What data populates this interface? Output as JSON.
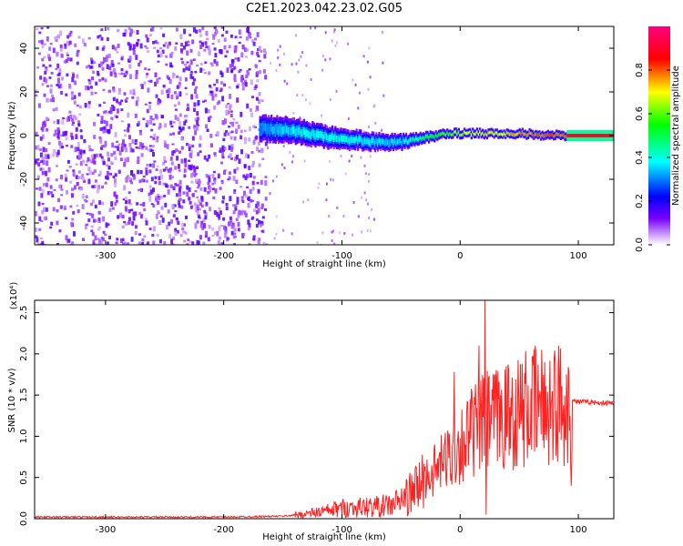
{
  "title": "C2E1.2023.042.23.02.G05",
  "chart_data": [
    {
      "type": "heatmap",
      "title": "C2E1.2023.042.23.02.G05",
      "xlabel": "Height of straight line (km)",
      "ylabel": "Frequency (Hz)",
      "xlim": [
        -360,
        130
      ],
      "ylim": [
        -50,
        50
      ],
      "xticks": [
        -300,
        -200,
        -100,
        0,
        100
      ],
      "yticks": [
        -40,
        -20,
        0,
        20,
        40
      ],
      "colorbar": {
        "label": "Normalized spectral amplitude",
        "range": [
          0.0,
          1.0
        ],
        "ticks": [
          "0.0",
          "0.2",
          "0.4",
          "0.6",
          "0.8"
        ],
        "colors": [
          "#ffffff",
          "#7a00ff",
          "#0000ff",
          "#00ffff",
          "#00ff00",
          "#ffff00",
          "#ff0000",
          "#ff0080"
        ]
      },
      "signal_track": {
        "description_free": true,
        "x": [
          -170,
          -150,
          -130,
          -110,
          -90,
          -70,
          -50,
          -30,
          -10,
          10,
          30,
          50,
          70,
          90
        ],
        "center_freq": [
          3,
          3,
          1,
          -1,
          -2,
          -3,
          -3,
          -1,
          1,
          1,
          1,
          1,
          0,
          0
        ],
        "width_hz": [
          12,
          12,
          11,
          10,
          9,
          8,
          7,
          5,
          4,
          4,
          4,
          4,
          4,
          4
        ],
        "peak_amplitude": [
          0.3,
          0.35,
          0.4,
          0.4,
          0.4,
          0.35,
          0.35,
          0.5,
          0.6,
          0.7,
          0.7,
          0.75,
          0.8,
          0.8
        ]
      },
      "noise_region_x": [
        -360,
        -165
      ]
    },
    {
      "type": "line",
      "xlabel": "Height of straight line (km)",
      "ylabel": "SNR (10 * v/v)",
      "y_multiplier": "(x10⁴)",
      "xlim": [
        -360,
        130
      ],
      "ylim": [
        0.0,
        2.65
      ],
      "xticks": [
        -300,
        -200,
        -100,
        0,
        100
      ],
      "yticks": [
        "0.0",
        "0.5",
        "1.0",
        "1.5",
        "2.0",
        "2.5"
      ],
      "series": [
        {
          "color": "#ff2020",
          "x": [
            -360,
            -300,
            -200,
            -150,
            -130,
            -110,
            -100,
            -80,
            -60,
            -50,
            -40,
            -30,
            -20,
            -10,
            0,
            10,
            20,
            30,
            40,
            50,
            60,
            70,
            80,
            90,
            95,
            100,
            130
          ],
          "y": [
            0.02,
            0.02,
            0.02,
            0.03,
            0.06,
            0.1,
            0.13,
            0.14,
            0.16,
            0.22,
            0.32,
            0.48,
            0.6,
            0.75,
            0.9,
            1.05,
            1.15,
            1.2,
            1.25,
            1.3,
            1.35,
            1.38,
            1.4,
            1.42,
            1.43,
            1.42,
            1.4
          ],
          "notable_peaks": [
            {
              "x": 21,
              "y": 2.65
            },
            {
              "x": 94,
              "y": 2.33
            },
            {
              "x": 16,
              "y": 2.1
            },
            {
              "x": -5,
              "y": 1.78
            }
          ],
          "notable_dips": [
            {
              "x": 94,
              "y": 0.4
            },
            {
              "x": 22,
              "y": 0.05
            }
          ]
        }
      ]
    }
  ]
}
